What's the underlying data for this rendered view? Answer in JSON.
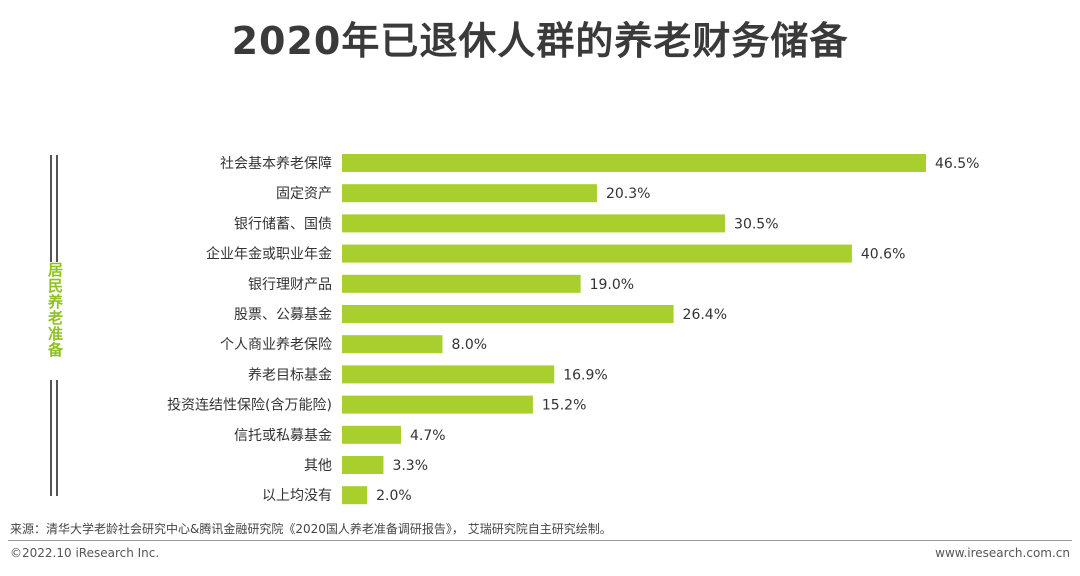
{
  "title": "2020年已退休人群的养老财务储备",
  "side_label": "居民养老准备",
  "colors": {
    "bar": "#a8cf2d",
    "accent": "#8dc21f",
    "text": "#333333"
  },
  "chart_data": {
    "type": "bar",
    "orientation": "horizontal",
    "title": "2020年已退休人群的养老财务储备",
    "categories": [
      "社会基本养老保障",
      "固定资产",
      "银行储蓄、国债",
      "企业年金或职业年金",
      "银行理财产品",
      "股票、公募基金",
      "个人商业养老保险",
      "养老目标基金",
      "投资连结性保险(含万能险)",
      "信托或私募基金",
      "其他",
      "以上均没有"
    ],
    "values": [
      46.5,
      20.3,
      30.5,
      40.6,
      19.0,
      26.4,
      8.0,
      16.9,
      15.2,
      4.7,
      3.3,
      2.0
    ],
    "labels": [
      "46.5%",
      "20.3%",
      "30.5%",
      "40.6%",
      "19.0%",
      "26.4%",
      "8.0%",
      "16.9%",
      "15.2%",
      "4.7%",
      "3.3%",
      "2.0%"
    ],
    "unit": "%",
    "xlim": [
      0,
      46.5
    ],
    "grid": false,
    "xlabel": "",
    "ylabel": "居民养老准备"
  },
  "footer": {
    "source": "来源：清华大学老龄社会研究中心&腾讯金融研究院《2020国人养老准备调研报告》， 艾瑞研究院自主研究绘制。",
    "copyright": "©2022.10 iResearch Inc.",
    "website": "www.iresearch.com.cn"
  }
}
